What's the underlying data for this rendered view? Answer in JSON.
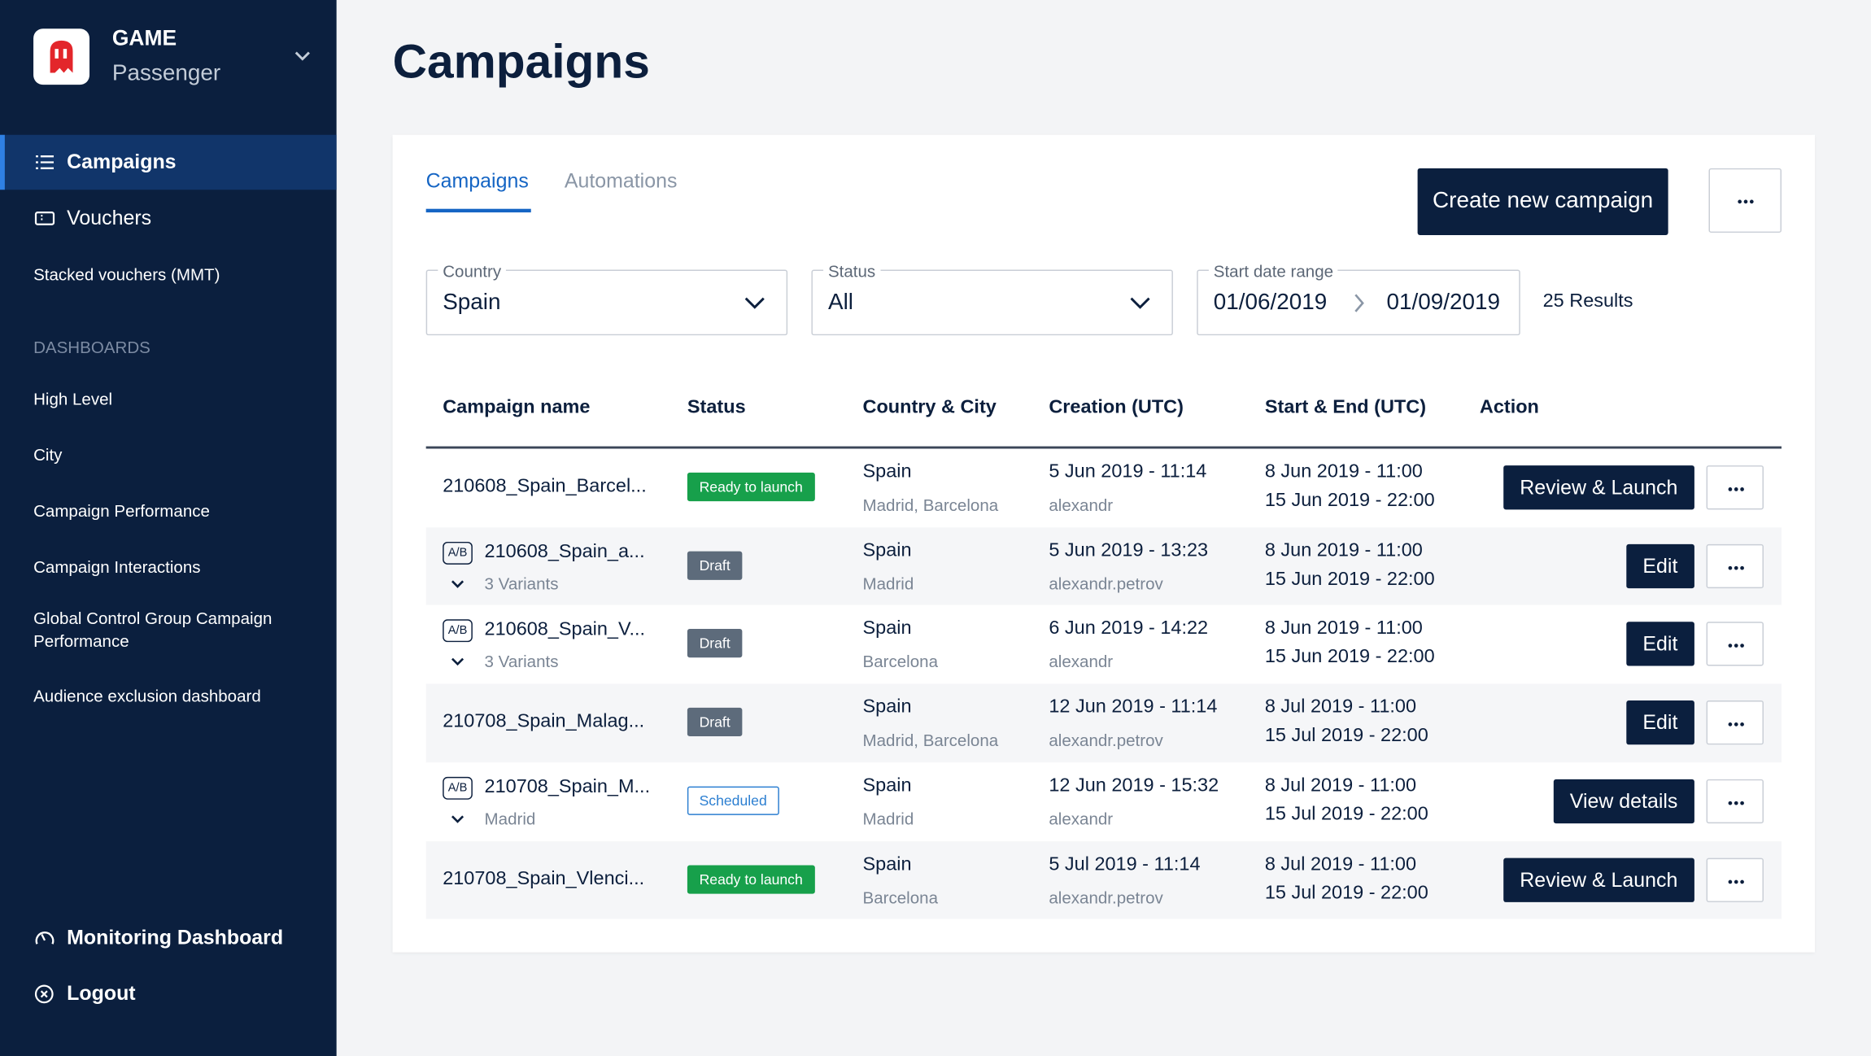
{
  "sidebar": {
    "brand": {
      "title": "GAME",
      "subtitle": "Passenger"
    },
    "nav": [
      {
        "label": "Campaigns"
      },
      {
        "label": "Vouchers"
      },
      {
        "label": "Stacked vouchers (MMT)"
      }
    ],
    "section": "DASHBOARDS",
    "dashboards": [
      "High Level",
      "City",
      "Campaign Performance",
      "Campaign Interactions",
      "Global Control Group Campaign Performance",
      "Audience exclusion dashboard"
    ],
    "footer": [
      "Monitoring Dashboard",
      "Logout"
    ]
  },
  "page": {
    "title": "Campaigns"
  },
  "tabs": [
    "Campaigns",
    "Automations"
  ],
  "create_button": "Create new campaign",
  "filters": [
    {
      "label": "Country",
      "value": "Spain"
    },
    {
      "label": "Status",
      "value": "All"
    }
  ],
  "date_range": {
    "label": "Start date range",
    "from": "01/06/2019",
    "to": "01/09/2019"
  },
  "results": "25 Results",
  "table": {
    "headers": [
      "Campaign name",
      "Status",
      "Country & City",
      "Creation (UTC)",
      "Start & End (UTC)",
      "Action"
    ],
    "rows": [
      {
        "name": "210608_Spain_Barcel...",
        "status": "Ready to launch",
        "status_color": "#17a04b",
        "status_filled": true,
        "country": "Spain",
        "city": "Madrid, Barcelona",
        "created": "5 Jun 2019 - 11:14",
        "creator": "alexandr",
        "start": "8 Jun 2019 - 11:00",
        "end": "15 Jun 2019 - 22:00",
        "action": "Review & Launch"
      },
      {
        "badge": "A/B",
        "name": "210608_Spain_a...",
        "sub": "3 Variants",
        "status": "Draft",
        "status_color": "#5d6b7b",
        "status_filled": true,
        "country": "Spain",
        "city": "Madrid",
        "created": "5 Jun 2019 - 13:23",
        "creator": "alexandr.petrov",
        "start": "8 Jun 2019 - 11:00",
        "end": "15 Jun 2019 - 22:00",
        "action": "Edit"
      },
      {
        "badge": "A/B",
        "name": "210608_Spain_V...",
        "sub": "3 Variants",
        "status": "Draft",
        "status_color": "#5d6b7b",
        "status_filled": true,
        "country": "Spain",
        "city": "Barcelona",
        "created": "6 Jun 2019 - 14:22",
        "creator": "alexandr",
        "start": "8 Jun 2019 - 11:00",
        "end": "15 Jun 2019 - 22:00",
        "action": "Edit"
      },
      {
        "name": "210708_Spain_Malag...",
        "status": "Draft",
        "status_color": "#5d6b7b",
        "status_filled": true,
        "country": "Spain",
        "city": "Madrid, Barcelona",
        "created": "12 Jun 2019 - 11:14",
        "creator": "alexandr.petrov",
        "start": "8 Jul 2019 - 11:00",
        "end": "15 Jul 2019 - 22:00",
        "action": "Edit"
      },
      {
        "badge": "A/B",
        "name": "210708_Spain_M...",
        "sub": "Madrid",
        "status": "Scheduled",
        "status_color": "#2c7fd1",
        "status_filled": false,
        "country": "Spain",
        "city": "Madrid",
        "created": "12 Jun 2019 - 15:32",
        "creator": "alexandr",
        "start": "8 Jul 2019 - 11:00",
        "end": "15 Jul 2019 - 22:00",
        "action": "View details"
      },
      {
        "name": "210708_Spain_Vlenci...",
        "status": "Ready to launch",
        "status_color": "#17a04b",
        "status_filled": true,
        "country": "Spain",
        "city": "Barcelona",
        "created": "5 Jul 2019 - 11:14",
        "creator": "alexandr.petrov",
        "start": "8 Jul 2019 - 11:00",
        "end": "15 Jul 2019 - 22:00",
        "action": "Review & Launch"
      }
    ]
  }
}
